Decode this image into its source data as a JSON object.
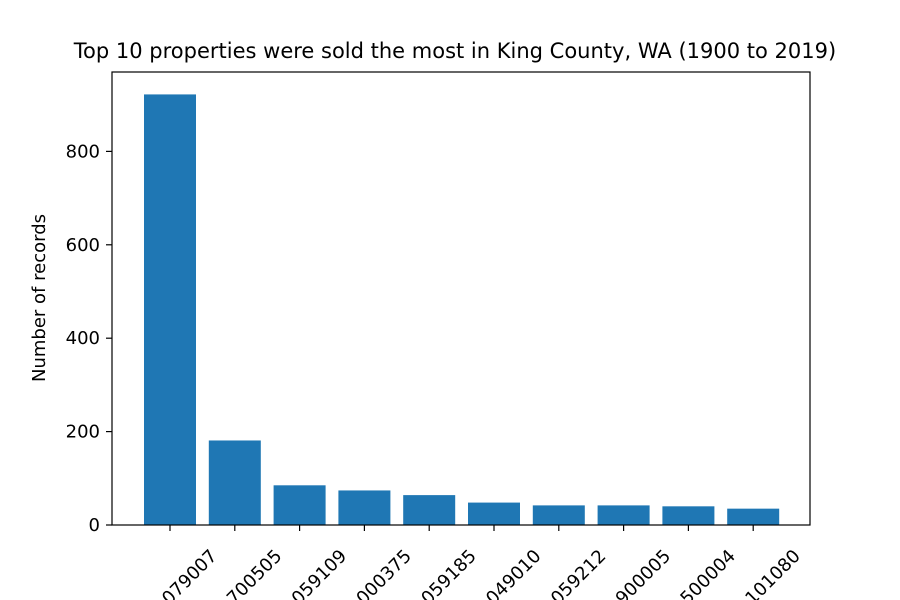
{
  "chart_data": {
    "type": "bar",
    "title": "Top 10 properties were sold the most in King County, WA (1900 to 2019)",
    "xlabel": "",
    "ylabel": "Number of records",
    "categories": [
      "079007",
      "700505",
      "059109",
      "000375",
      "059185",
      "049010",
      "059212",
      "900005",
      "500004",
      "101080"
    ],
    "values": [
      922,
      181,
      85,
      74,
      64,
      48,
      42,
      42,
      40,
      35
    ],
    "ylim": [
      0,
      970
    ],
    "yticks": [
      0,
      200,
      400,
      600,
      800
    ],
    "bar_color": "#1f77b4",
    "grid": false,
    "legend": "none"
  }
}
